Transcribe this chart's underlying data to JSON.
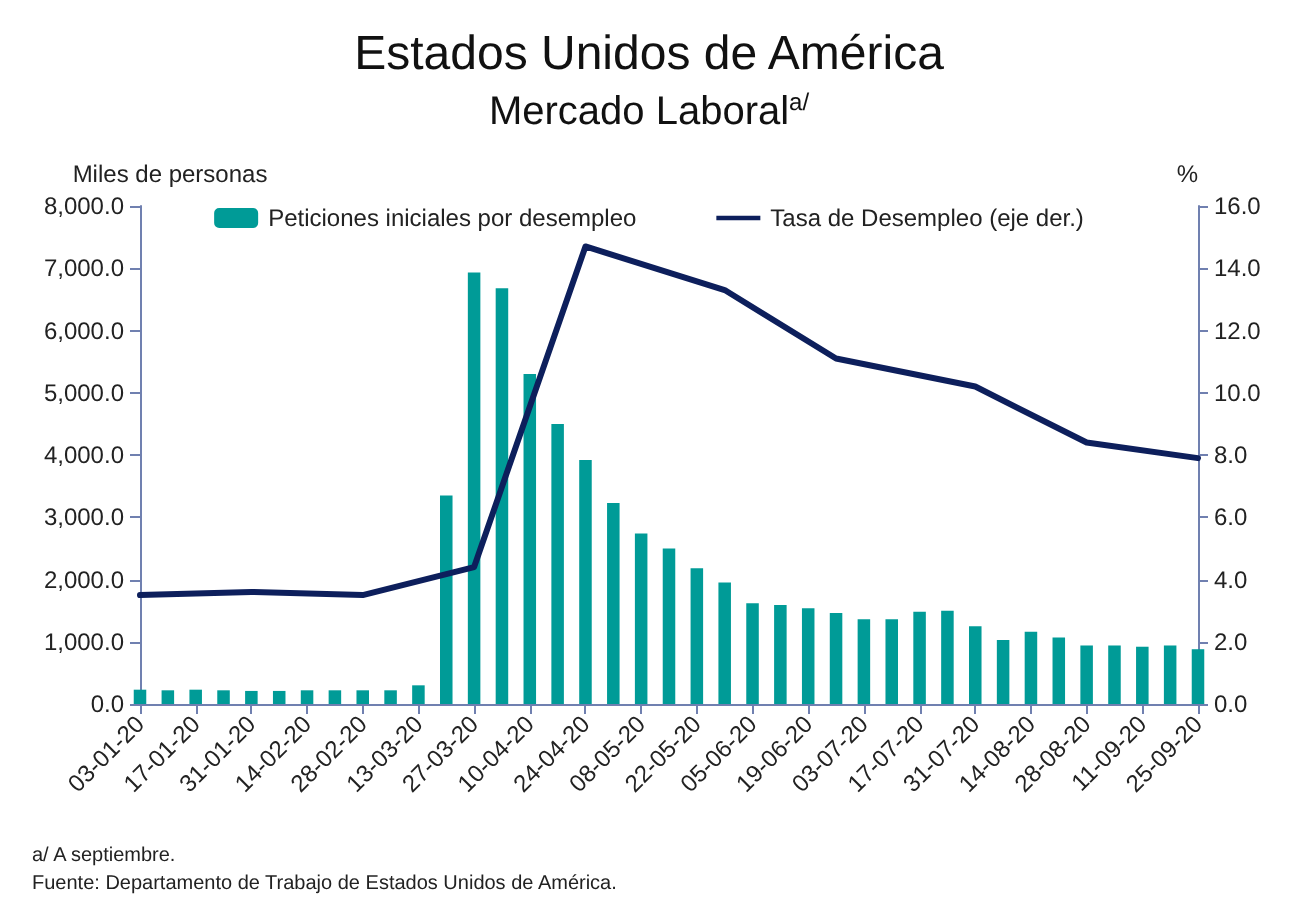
{
  "chart_data": {
    "type": "bar",
    "title": "Estados Unidos de América",
    "subtitle": "Mercado Laboral$^{a/}$",
    "ylabel": "Miles de personas",
    "y2label": "%",
    "categories": [
      "03-01-20",
      null,
      "17-01-20",
      null,
      "31-01-20",
      null,
      "14-02-20",
      null,
      "28-02-20",
      null,
      "13-03-20",
      null,
      "27-03-20",
      null,
      "10-04-20",
      null,
      "24-04-20",
      null,
      "08-05-20",
      null,
      "22-05-20",
      null,
      "05-06-20",
      null,
      "19-06-20",
      null,
      "03-07-20",
      null,
      "17-07-20",
      null,
      "31-07-20",
      null,
      "14-08-20",
      null,
      "28-08-20",
      null,
      "11-09-20",
      null,
      "25-09-20"
    ],
    "series": [
      {
        "name": "Peticiones iniciales por desempleo",
        "color": "#009b97",
        "values": [
          230,
          220,
          230,
          220,
          210,
          210,
          220,
          220,
          220,
          220,
          300,
          3350,
          6930,
          6680,
          5300,
          4500,
          3920,
          3230,
          2740,
          2500,
          2180,
          1950,
          1620,
          1590,
          1540,
          1460,
          1360,
          1360,
          1480,
          1500,
          1250,
          1030,
          1160,
          1070,
          940,
          940,
          920,
          940,
          880
        ]
      },
      {
        "name": "Tasa de Desempleo (eje der.)",
        "type": "line",
        "axis": "y2",
        "color": "#0d1f5c",
        "values": [
          3.5,
          null,
          null,
          null,
          3.6,
          null,
          null,
          null,
          3.5,
          null,
          null,
          null,
          4.4,
          null,
          null,
          null,
          14.7,
          null,
          null,
          null,
          null,
          13.3,
          null,
          null,
          null,
          11.1,
          null,
          null,
          null,
          null,
          10.2,
          null,
          null,
          null,
          8.4,
          null,
          null,
          null,
          7.9
        ]
      }
    ],
    "ylim": [
      0,
      8000
    ],
    "yticks": [
      {
        "value": 0,
        "label": "0.0"
      },
      {
        "value": 1000,
        "label": "1,000.0"
      },
      {
        "value": 2000,
        "label": "2,000.0"
      },
      {
        "value": 3000,
        "label": "3,000.0"
      },
      {
        "value": 4000,
        "label": "4,000.0"
      },
      {
        "value": 5000,
        "label": "5,000.0"
      },
      {
        "value": 6000,
        "label": "6,000.0"
      },
      {
        "value": 7000,
        "label": "7,000.0"
      },
      {
        "value": 8000,
        "label": "8,000.0"
      }
    ],
    "y2lim": [
      0,
      16
    ],
    "y2ticks": [
      {
        "value": 0,
        "label": "0.0"
      },
      {
        "value": 2,
        "label": "2.0"
      },
      {
        "value": 4,
        "label": "4.0"
      },
      {
        "value": 6,
        "label": "6.0"
      },
      {
        "value": 8,
        "label": "8.0"
      },
      {
        "value": 10,
        "label": "10.0"
      },
      {
        "value": 12,
        "label": "12.0"
      },
      {
        "value": 14,
        "label": "14.0"
      },
      {
        "value": 16,
        "label": "16.0"
      }
    ],
    "grid": false,
    "legend": "top",
    "marker": "none",
    "line_style": "solid",
    "annotations": [
      "a/ A septiembre.",
      "Fuente: Departamento de Trabajo de Estados Unidos de América."
    ]
  }
}
